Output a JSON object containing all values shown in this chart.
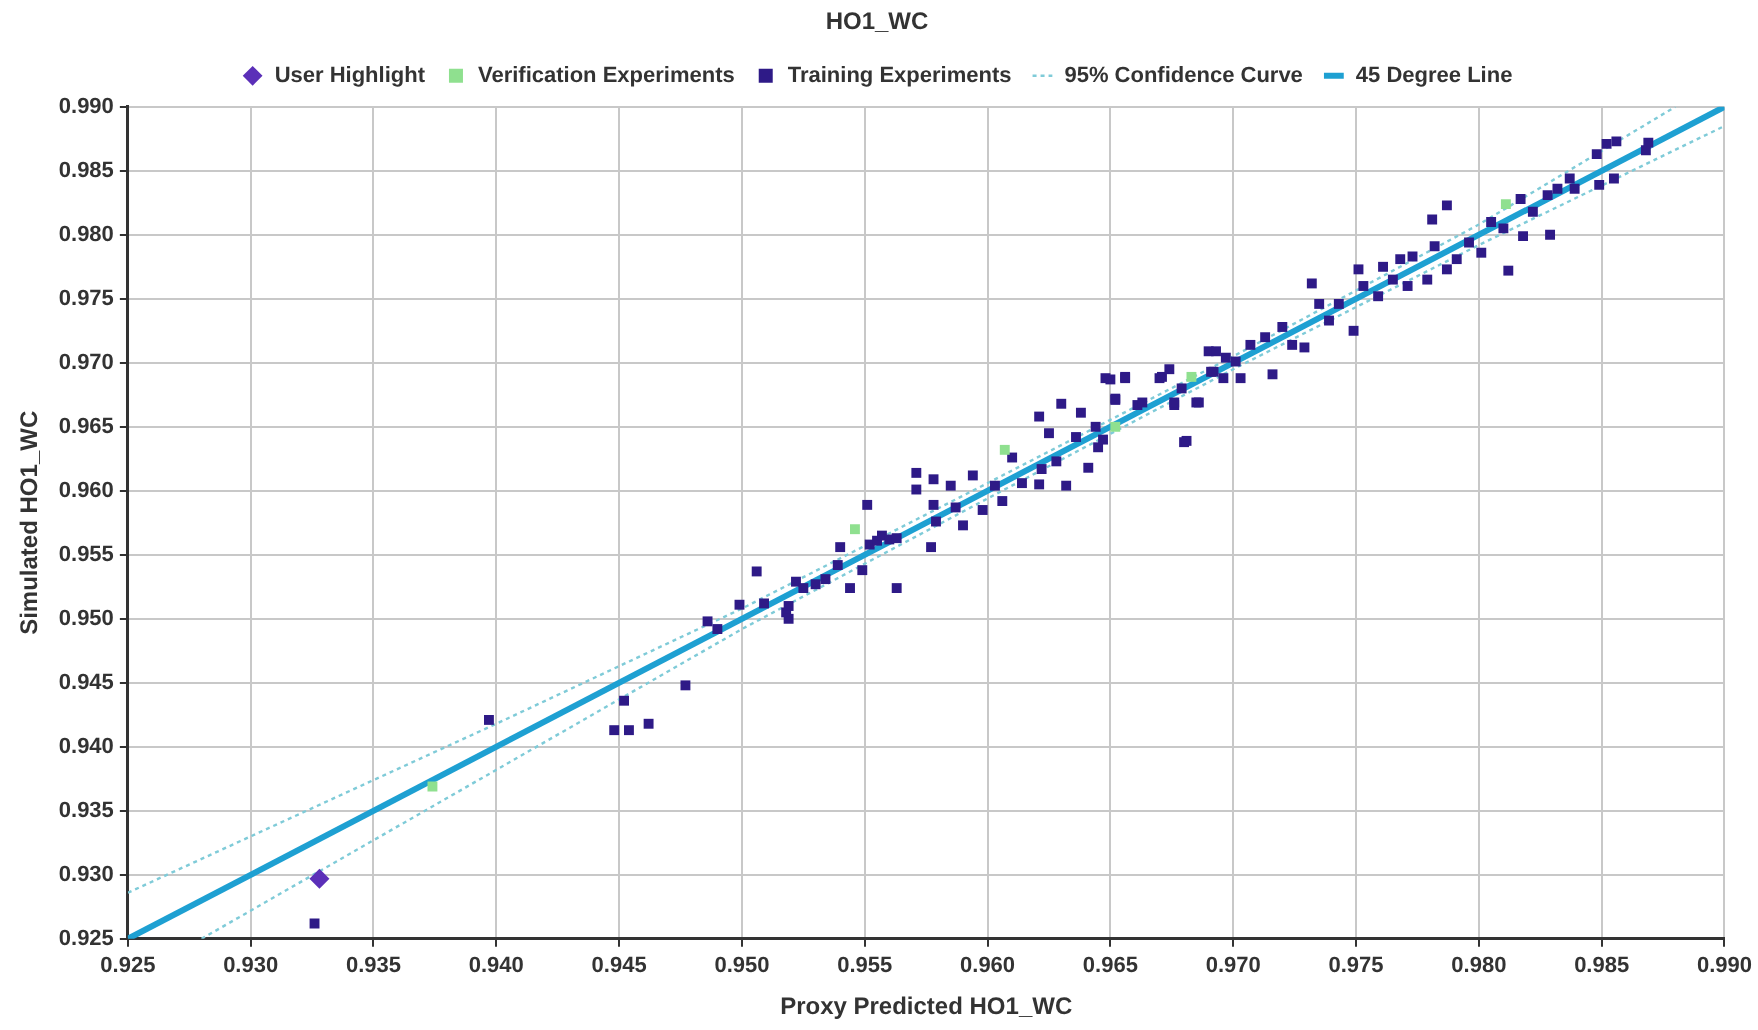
{
  "chart_data": {
    "type": "scatter",
    "title": "HO1_WC",
    "xlabel": "Proxy Predicted HO1_WC",
    "ylabel": "Simulated HO1_WC",
    "xlim": [
      0.925,
      0.99
    ],
    "ylim": [
      0.925,
      0.99
    ],
    "xticks": [
      0.925,
      {
        "value": 0.93,
        "label": "0.930"
      },
      0.935,
      {
        "value": 0.94,
        "label": "0.940"
      },
      0.945,
      {
        "value": 0.95,
        "label": "0.950"
      },
      0.955,
      {
        "value": 0.96,
        "label": "0.960"
      },
      0.965,
      {
        "value": 0.97,
        "label": "0.970"
      },
      0.975,
      {
        "value": 0.98,
        "label": "0.980"
      },
      0.985,
      {
        "value": 0.99,
        "label": "0.990"
      }
    ],
    "yticks": [
      0.925,
      {
        "value": 0.93,
        "label": "0.930"
      },
      0.935,
      {
        "value": 0.94,
        "label": "0.940"
      },
      0.945,
      {
        "value": 0.95,
        "label": "0.950"
      },
      0.955,
      {
        "value": 0.96,
        "label": "0.960"
      },
      0.965,
      {
        "value": 0.97,
        "label": "0.970"
      },
      0.975,
      {
        "value": 0.98,
        "label": "0.980"
      },
      0.985,
      {
        "value": 0.99,
        "label": "0.990"
      }
    ],
    "grid": true,
    "legend": "top",
    "series": [
      {
        "name": "45 Degree Line",
        "type": "line",
        "color": "#1ea0d2",
        "marker": "none",
        "line_style": "solid",
        "x": [
          0.925,
          0.99
        ],
        "values": [
          0.925,
          0.99
        ]
      },
      {
        "name": "95% Confidence Curve",
        "type": "line",
        "color": "#7fcbd8",
        "marker": "none",
        "line_style": "dotted",
        "x": [
          0.925,
          0.94,
          0.95,
          0.96,
          0.97,
          0.98,
          0.988
        ],
        "values": [
          0.9286,
          0.9418,
          0.9508,
          0.9606,
          0.9705,
          0.9808,
          0.99
        ]
      },
      {
        "type": "line",
        "color": "#7fcbd8",
        "marker": "none",
        "line_style": "dotted",
        "x": [
          0.928,
          0.94,
          0.95,
          0.96,
          0.97,
          0.98,
          0.99
        ],
        "values": [
          0.925,
          0.9382,
          0.9492,
          0.9594,
          0.9695,
          0.9792,
          0.9885
        ]
      },
      {
        "name": "Training Experiments",
        "type": "scatter",
        "color": "#2e1a87",
        "marker": "square",
        "x": [
          0.9326,
          0.9397,
          0.9448,
          0.9454,
          0.9452,
          0.9462,
          0.9477,
          0.9486,
          0.949,
          0.9499,
          0.9506,
          0.9509,
          0.9518,
          0.9519,
          0.9519,
          0.9522,
          0.9525,
          0.953,
          0.9534,
          0.9539,
          0.954,
          0.9544,
          0.9549,
          0.9551,
          0.9552,
          0.9555,
          0.9557,
          0.956,
          0.9563,
          0.9563,
          0.9571,
          0.9571,
          0.9578,
          0.9578,
          0.9579,
          0.9577,
          0.9585,
          0.9587,
          0.9594,
          0.959,
          0.9598,
          0.9603,
          0.9606,
          0.961,
          0.9614,
          0.9621,
          0.9622,
          0.9628,
          0.963,
          0.9621,
          0.9625,
          0.9632,
          0.9636,
          0.9638,
          0.9641,
          0.9644,
          0.9645,
          0.965,
          0.9656,
          0.9652,
          0.9661,
          0.967,
          0.9674,
          0.9676,
          0.968,
          0.9685,
          0.969,
          0.9692,
          0.9697,
          0.9648,
          0.9656,
          0.9652,
          0.9663,
          0.9647,
          0.9671,
          0.9676,
          0.9679,
          0.9681,
          0.9686,
          0.9691,
          0.9693,
          0.9696,
          0.9701,
          0.9703,
          0.9707,
          0.9713,
          0.9716,
          0.972,
          0.9724,
          0.9729,
          0.9732,
          0.9735,
          0.9739,
          0.9743,
          0.9749,
          0.9751,
          0.9753,
          0.9759,
          0.9761,
          0.9765,
          0.9768,
          0.9771,
          0.9773,
          0.9779,
          0.9782,
          0.9787,
          0.9781,
          0.9787,
          0.9791,
          0.9796,
          0.9801,
          0.9805,
          0.981,
          0.9812,
          0.9817,
          0.9818,
          0.9822,
          0.9828,
          0.9829,
          0.9832,
          0.9837,
          0.9839,
          0.9849,
          0.9848,
          0.9852,
          0.9855,
          0.9856,
          0.9868,
          0.9869
        ],
        "values": [
          0.9262,
          0.9421,
          0.9413,
          0.9413,
          0.9436,
          0.9418,
          0.9448,
          0.9498,
          0.9492,
          0.9511,
          0.9537,
          0.9512,
          0.9505,
          0.95,
          0.951,
          0.9529,
          0.9524,
          0.9527,
          0.9531,
          0.9542,
          0.9556,
          0.9524,
          0.9538,
          0.9589,
          0.9558,
          0.9561,
          0.9565,
          0.9562,
          0.9563,
          0.9524,
          0.9614,
          0.9601,
          0.9609,
          0.9589,
          0.9576,
          0.9556,
          0.9604,
          0.9587,
          0.9612,
          0.9573,
          0.9585,
          0.9604,
          0.9592,
          0.9626,
          0.9606,
          0.9605,
          0.9617,
          0.9623,
          0.9668,
          0.9658,
          0.9645,
          0.9604,
          0.9642,
          0.9661,
          0.9618,
          0.965,
          0.9634,
          0.9687,
          0.9688,
          0.9671,
          0.9667,
          0.9688,
          0.9695,
          0.9667,
          0.9638,
          0.9669,
          0.9709,
          0.9693,
          0.9704,
          0.9688,
          0.9689,
          0.9672,
          0.9669,
          0.964,
          0.9689,
          0.9669,
          0.968,
          0.9639,
          0.9669,
          0.9693,
          0.9709,
          0.9688,
          0.9701,
          0.9688,
          0.9714,
          0.972,
          0.9691,
          0.9728,
          0.9714,
          0.9712,
          0.9762,
          0.9746,
          0.9733,
          0.9746,
          0.9725,
          0.9773,
          0.976,
          0.9752,
          0.9775,
          0.9765,
          0.9781,
          0.976,
          0.9783,
          0.9765,
          0.9791,
          0.9773,
          0.9812,
          0.9823,
          0.9781,
          0.9794,
          0.9786,
          0.981,
          0.9805,
          0.9772,
          0.9828,
          0.9799,
          0.9818,
          0.9831,
          0.98,
          0.9836,
          0.9844,
          0.9836,
          0.9839,
          0.9863,
          0.9871,
          0.9844,
          0.9873,
          0.9866,
          0.9872
        ]
      },
      {
        "name": "Verification Experiments",
        "type": "scatter",
        "color": "#8fe08f",
        "marker": "square",
        "x": [
          0.9374,
          0.9546,
          0.9607,
          0.9652,
          0.9683,
          0.9811
        ],
        "values": [
          0.9369,
          0.957,
          0.9632,
          0.965,
          0.9689,
          0.9824
        ]
      },
      {
        "name": "User Highlight",
        "type": "scatter",
        "color": "#5b2fb8",
        "marker": "diamond",
        "x": [
          0.9328
        ],
        "values": [
          0.9297
        ]
      }
    ]
  }
}
